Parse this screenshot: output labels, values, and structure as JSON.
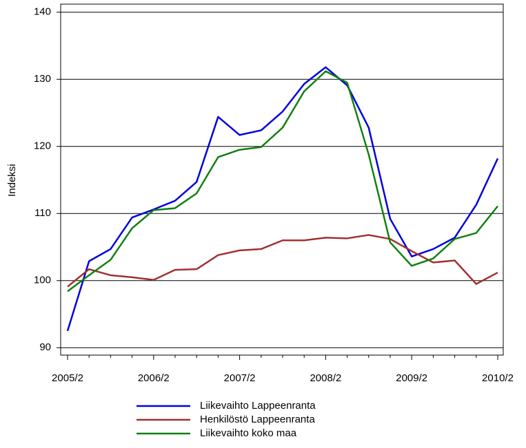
{
  "chart_data": {
    "type": "line",
    "ylabel": "Indeksi",
    "categories": [
      "2005/2",
      null,
      null,
      null,
      "2006/2",
      null,
      null,
      null,
      "2007/2",
      null,
      null,
      null,
      "2008/2",
      null,
      null,
      null,
      "2009/2",
      null,
      null,
      null,
      "2010/2"
    ],
    "series": [
      {
        "name": "Liikevaihto Lappeenranta",
        "color": "#0000e0",
        "values": [
          92.5,
          102.9,
          104.7,
          109.4,
          110.6,
          111.9,
          114.7,
          124.4,
          121.7,
          122.4,
          125.2,
          129.3,
          131.8,
          129.1,
          122.8,
          109.2,
          103.6,
          104.7,
          106.4,
          111.3,
          118.2
        ]
      },
      {
        "name": "Henkilöstö Lappeenranta",
        "color": "#a03030",
        "values": [
          99.1,
          101.7,
          100.8,
          100.5,
          100.1,
          101.6,
          101.7,
          103.8,
          104.5,
          104.7,
          106.0,
          106.0,
          106.4,
          106.3,
          106.8,
          106.2,
          104.4,
          102.7,
          103.0,
          99.5,
          101.2
        ]
      },
      {
        "name": "Liikevaihto koko maa",
        "color": "#108010",
        "values": [
          98.4,
          100.8,
          103.1,
          107.8,
          110.5,
          110.8,
          113.0,
          118.4,
          119.5,
          119.9,
          122.8,
          128.2,
          131.2,
          129.5,
          118.8,
          105.7,
          102.2,
          103.3,
          106.2,
          107.1,
          111.1
        ]
      }
    ],
    "ylim": [
      88.9,
      141.2
    ],
    "yticks": [
      90,
      100,
      110,
      120,
      130,
      140
    ],
    "grid": true,
    "legend": "bottom"
  }
}
